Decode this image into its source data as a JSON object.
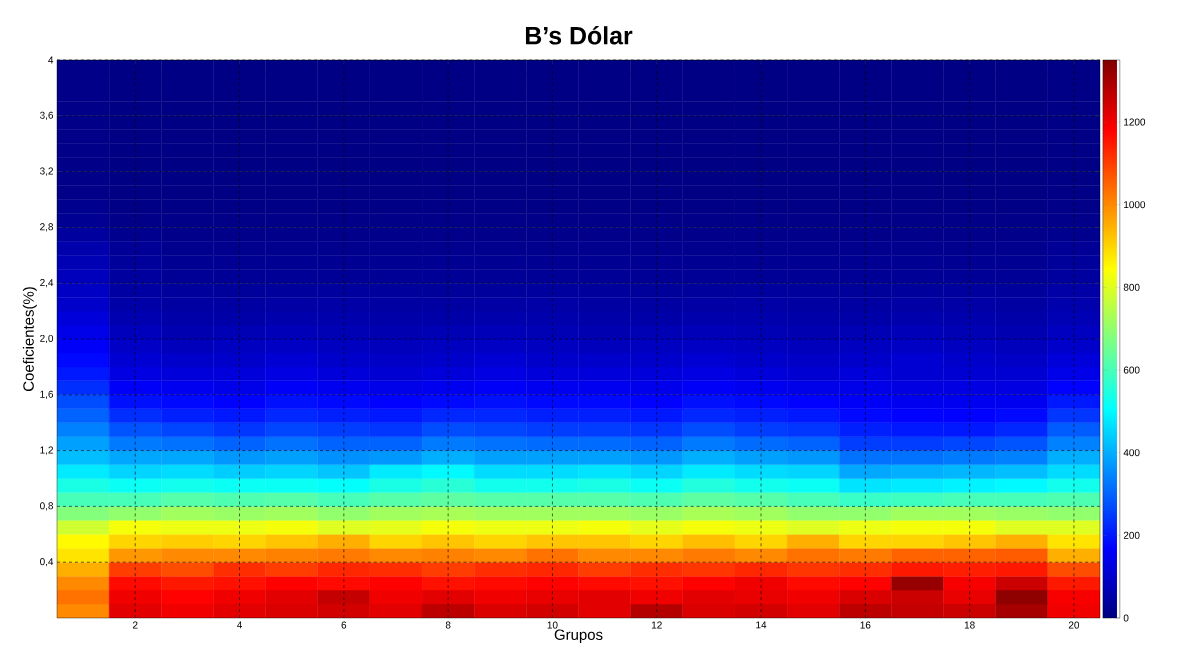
{
  "chart_data": {
    "type": "heatmap",
    "title": "B’s Dólar",
    "xlabel": "Grupos",
    "ylabel": "Coeficientes(%)",
    "x": [
      1,
      2,
      3,
      4,
      5,
      6,
      7,
      8,
      9,
      10,
      11,
      12,
      13,
      14,
      15,
      16,
      17,
      18,
      19,
      20
    ],
    "y": [
      3.95,
      3.85,
      3.75,
      3.65,
      3.55,
      3.45,
      3.35,
      3.25,
      3.15,
      3.05,
      2.95,
      2.85,
      2.75,
      2.65,
      2.55,
      2.45,
      2.35,
      2.25,
      2.15,
      2.05,
      1.95,
      1.85,
      1.75,
      1.65,
      1.55,
      1.45,
      1.35,
      1.25,
      1.15,
      1.05,
      0.95,
      0.85,
      0.75,
      0.65,
      0.55,
      0.45,
      0.35,
      0.25,
      0.15,
      0.05
    ],
    "cells": [
      [
        10,
        5,
        5,
        5,
        5,
        5,
        5,
        5,
        5,
        5,
        5,
        5,
        5,
        5,
        5,
        5,
        5,
        5,
        5,
        8
      ],
      [
        10,
        5,
        5,
        5,
        5,
        5,
        5,
        5,
        5,
        5,
        5,
        5,
        5,
        5,
        5,
        5,
        5,
        5,
        5,
        8
      ],
      [
        10,
        5,
        5,
        5,
        5,
        5,
        5,
        5,
        5,
        5,
        5,
        5,
        5,
        5,
        5,
        5,
        5,
        5,
        5,
        8
      ],
      [
        10,
        5,
        5,
        5,
        5,
        5,
        5,
        5,
        5,
        5,
        5,
        5,
        5,
        5,
        5,
        5,
        5,
        5,
        5,
        8
      ],
      [
        10,
        5,
        5,
        5,
        5,
        5,
        5,
        5,
        5,
        5,
        5,
        5,
        5,
        5,
        5,
        5,
        5,
        5,
        5,
        8
      ],
      [
        10,
        5,
        5,
        5,
        5,
        5,
        5,
        5,
        5,
        5,
        5,
        5,
        5,
        5,
        5,
        5,
        5,
        5,
        5,
        8
      ],
      [
        10,
        5,
        5,
        5,
        5,
        5,
        5,
        5,
        5,
        5,
        5,
        5,
        5,
        5,
        5,
        5,
        5,
        5,
        5,
        8
      ],
      [
        10,
        5,
        5,
        5,
        5,
        5,
        5,
        5,
        5,
        5,
        5,
        5,
        5,
        5,
        5,
        5,
        5,
        5,
        5,
        8
      ],
      [
        10,
        5,
        5,
        5,
        5,
        5,
        5,
        5,
        5,
        5,
        5,
        5,
        5,
        5,
        5,
        5,
        5,
        5,
        5,
        8
      ],
      [
        10,
        5,
        5,
        5,
        5,
        5,
        5,
        5,
        5,
        5,
        5,
        5,
        5,
        5,
        5,
        5,
        5,
        5,
        5,
        8
      ],
      [
        20,
        8,
        8,
        8,
        8,
        8,
        8,
        8,
        8,
        8,
        8,
        8,
        8,
        8,
        8,
        8,
        8,
        8,
        8,
        10
      ],
      [
        25,
        10,
        10,
        10,
        10,
        10,
        10,
        10,
        10,
        10,
        10,
        10,
        10,
        10,
        10,
        10,
        10,
        10,
        10,
        15
      ],
      [
        40,
        20,
        15,
        15,
        15,
        15,
        15,
        15,
        15,
        15,
        15,
        15,
        15,
        15,
        15,
        15,
        15,
        15,
        15,
        20
      ],
      [
        60,
        30,
        20,
        20,
        20,
        20,
        20,
        20,
        20,
        20,
        20,
        20,
        20,
        20,
        20,
        20,
        20,
        20,
        20,
        30
      ],
      [
        70,
        35,
        25,
        25,
        25,
        25,
        25,
        25,
        25,
        25,
        25,
        25,
        25,
        25,
        25,
        25,
        25,
        25,
        25,
        35
      ],
      [
        80,
        40,
        30,
        30,
        30,
        30,
        30,
        30,
        30,
        30,
        30,
        30,
        30,
        30,
        30,
        30,
        30,
        30,
        30,
        40
      ],
      [
        90,
        45,
        38,
        35,
        38,
        40,
        38,
        35,
        38,
        40,
        38,
        35,
        38,
        40,
        38,
        35,
        38,
        40,
        38,
        50
      ],
      [
        100,
        55,
        45,
        45,
        48,
        50,
        45,
        45,
        48,
        50,
        45,
        45,
        48,
        50,
        45,
        45,
        48,
        50,
        45,
        60
      ],
      [
        120,
        65,
        55,
        55,
        60,
        60,
        55,
        55,
        60,
        60,
        55,
        55,
        60,
        60,
        55,
        55,
        60,
        60,
        55,
        70
      ],
      [
        140,
        80,
        65,
        70,
        75,
        70,
        65,
        70,
        75,
        70,
        65,
        70,
        75,
        70,
        65,
        70,
        75,
        70,
        65,
        85
      ],
      [
        160,
        95,
        80,
        85,
        90,
        85,
        80,
        85,
        90,
        85,
        80,
        85,
        90,
        85,
        80,
        85,
        90,
        85,
        80,
        100
      ],
      [
        180,
        110,
        100,
        100,
        110,
        100,
        95,
        100,
        110,
        100,
        100,
        100,
        110,
        100,
        95,
        100,
        110,
        100,
        95,
        120
      ],
      [
        200,
        130,
        120,
        120,
        130,
        120,
        110,
        120,
        130,
        120,
        120,
        120,
        130,
        120,
        110,
        120,
        110,
        110,
        110,
        140
      ],
      [
        230,
        160,
        150,
        140,
        160,
        150,
        140,
        150,
        160,
        150,
        150,
        145,
        160,
        150,
        140,
        140,
        130,
        130,
        130,
        170
      ],
      [
        270,
        190,
        180,
        170,
        190,
        180,
        170,
        180,
        190,
        180,
        180,
        170,
        190,
        180,
        170,
        160,
        150,
        150,
        150,
        200
      ],
      [
        300,
        230,
        210,
        200,
        220,
        210,
        200,
        220,
        220,
        210,
        210,
        200,
        220,
        210,
        200,
        180,
        170,
        170,
        180,
        240
      ],
      [
        340,
        280,
        260,
        240,
        260,
        250,
        240,
        270,
        260,
        250,
        250,
        240,
        270,
        250,
        240,
        210,
        200,
        200,
        220,
        290
      ],
      [
        380,
        330,
        320,
        300,
        320,
        300,
        300,
        330,
        320,
        310,
        310,
        300,
        330,
        310,
        300,
        250,
        250,
        260,
        280,
        340
      ],
      [
        420,
        390,
        390,
        370,
        380,
        360,
        370,
        400,
        380,
        380,
        380,
        370,
        400,
        380,
        370,
        320,
        320,
        330,
        340,
        400
      ],
      [
        480,
        450,
        460,
        440,
        450,
        430,
        480,
        500,
        460,
        460,
        470,
        450,
        480,
        460,
        450,
        390,
        400,
        410,
        420,
        460
      ],
      [
        540,
        520,
        530,
        520,
        520,
        510,
        540,
        560,
        530,
        530,
        540,
        520,
        550,
        530,
        520,
        470,
        480,
        490,
        500,
        530
      ],
      [
        600,
        600,
        620,
        610,
        620,
        600,
        620,
        630,
        620,
        620,
        620,
        610,
        630,
        620,
        600,
        580,
        590,
        600,
        600,
        610
      ],
      [
        680,
        700,
        720,
        710,
        720,
        700,
        720,
        730,
        720,
        720,
        720,
        710,
        730,
        720,
        700,
        700,
        720,
        720,
        710,
        700
      ],
      [
        780,
        830,
        820,
        820,
        830,
        800,
        810,
        830,
        820,
        820,
        830,
        810,
        830,
        820,
        800,
        820,
        830,
        830,
        800,
        800
      ],
      [
        850,
        900,
        910,
        900,
        920,
        950,
        900,
        920,
        900,
        920,
        920,
        900,
        930,
        900,
        950,
        900,
        900,
        920,
        950,
        880
      ],
      [
        880,
        980,
        1000,
        1000,
        1010,
        1020,
        1000,
        1010,
        1000,
        1030,
        1000,
        1000,
        1020,
        1000,
        1030,
        1020,
        1050,
        1050,
        1060,
        950
      ],
      [
        950,
        1100,
        1080,
        1120,
        1100,
        1130,
        1120,
        1100,
        1120,
        1130,
        1100,
        1120,
        1110,
        1130,
        1110,
        1120,
        1150,
        1140,
        1150,
        1080
      ],
      [
        1000,
        1170,
        1150,
        1160,
        1180,
        1170,
        1180,
        1160,
        1170,
        1180,
        1170,
        1160,
        1180,
        1200,
        1170,
        1180,
        1320,
        1190,
        1250,
        1150
      ],
      [
        1030,
        1200,
        1180,
        1200,
        1220,
        1260,
        1200,
        1220,
        1200,
        1210,
        1220,
        1200,
        1220,
        1210,
        1200,
        1230,
        1250,
        1210,
        1330,
        1190
      ],
      [
        1000,
        1220,
        1200,
        1220,
        1230,
        1240,
        1220,
        1270,
        1230,
        1240,
        1220,
        1280,
        1230,
        1240,
        1220,
        1270,
        1260,
        1250,
        1300,
        1200
      ]
    ],
    "xlim": [
      0.5,
      20.5
    ],
    "ylim": [
      0,
      4
    ],
    "xticks": [
      2,
      4,
      6,
      8,
      10,
      12,
      14,
      16,
      18,
      20
    ],
    "yticks": [
      {
        "value": 0.4,
        "label": "0,4"
      },
      {
        "value": 0.8,
        "label": "0,8"
      },
      {
        "value": 1.2,
        "label": "1,2"
      },
      {
        "value": 1.6,
        "label": "1,6"
      },
      {
        "value": 2.0,
        "label": "2,0"
      },
      {
        "value": 2.4,
        "label": "2,4"
      },
      {
        "value": 2.8,
        "label": "2,8"
      },
      {
        "value": 3.2,
        "label": "3,2"
      },
      {
        "value": 3.6,
        "label": "3,6"
      },
      {
        "value": 4,
        "label": "4"
      }
    ],
    "clim": [
      0,
      1350
    ],
    "cticks": [
      0,
      200,
      400,
      600,
      800,
      1000,
      1200
    ],
    "grid": true
  }
}
